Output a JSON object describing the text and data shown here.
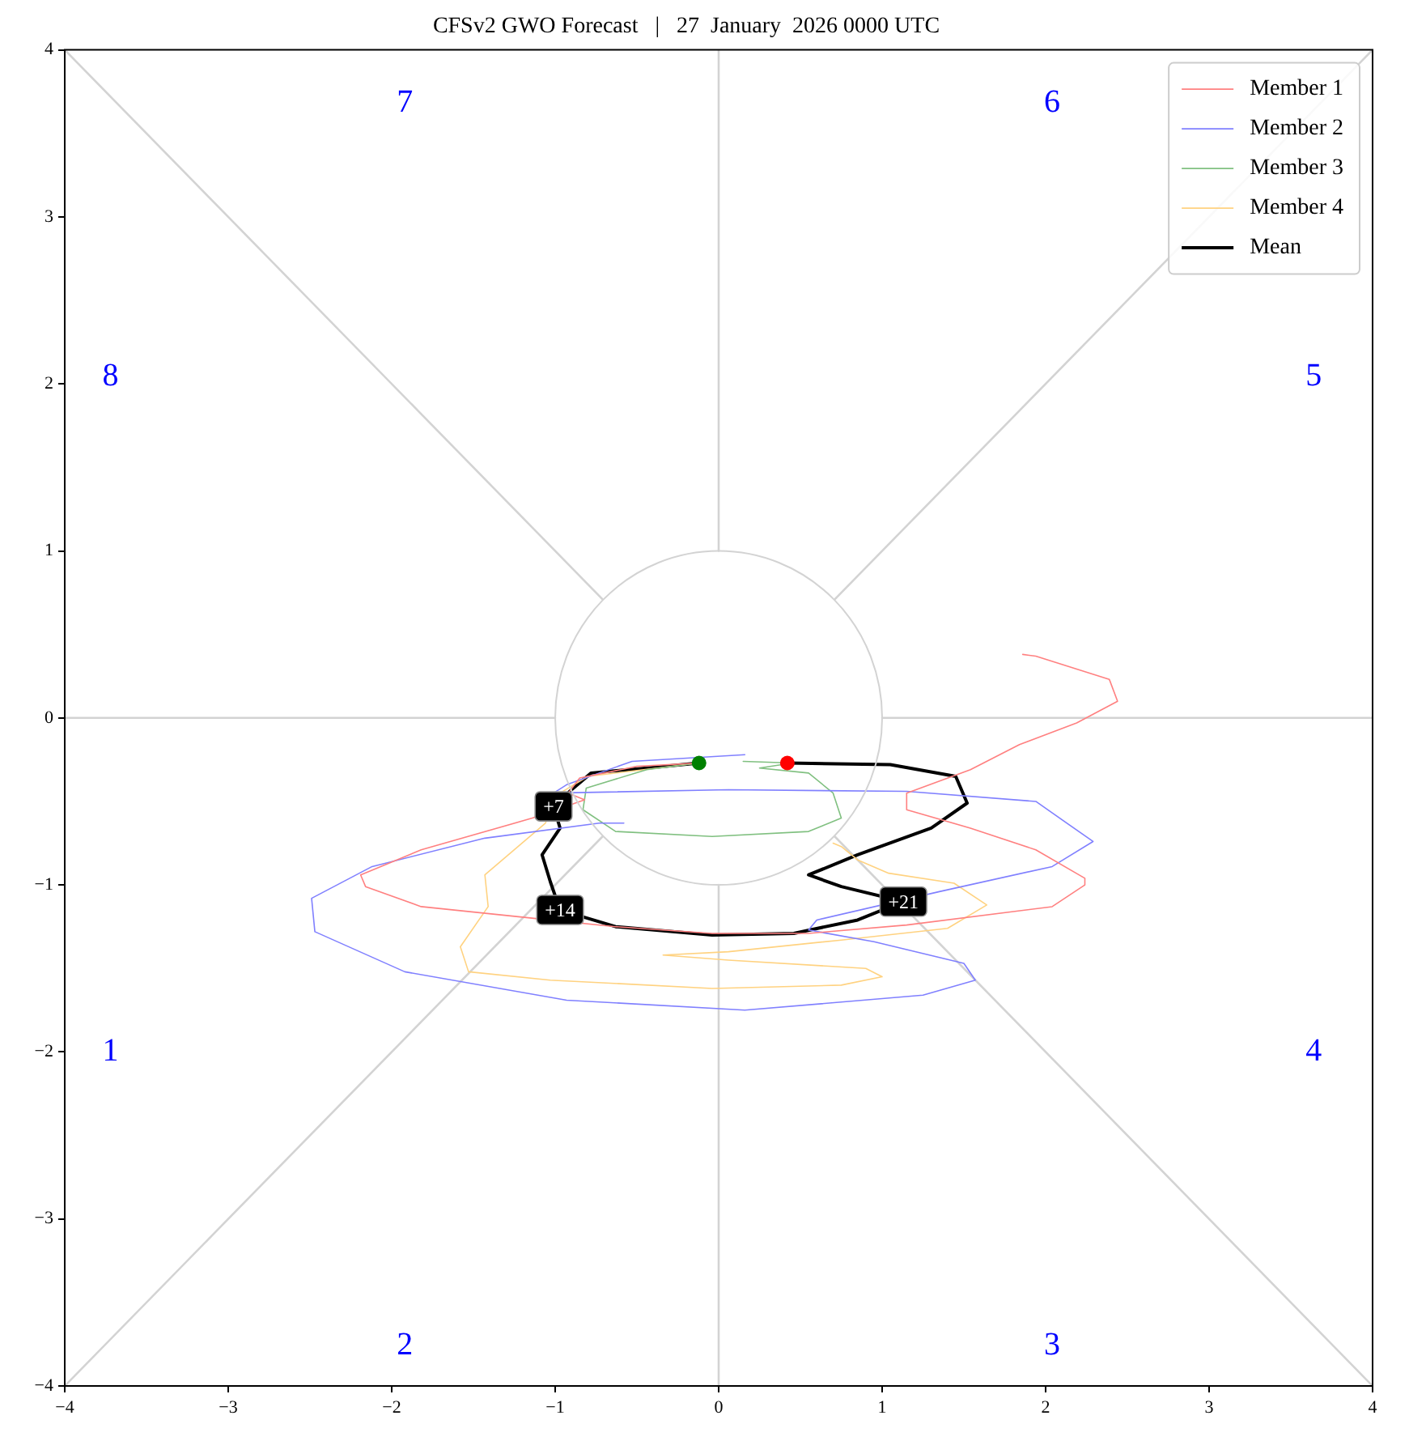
{
  "chart_data": {
    "type": "line",
    "title": "CFSv2 GWO Forecast   |   27  January  2026 0000 UTC",
    "xlim": [
      -4,
      4
    ],
    "ylim": [
      -4,
      4
    ],
    "xticks": [
      {
        "value": -4,
        "label": "−4"
      },
      {
        "value": -3,
        "label": "−3"
      },
      {
        "value": -2,
        "label": "−2"
      },
      {
        "value": -1,
        "label": "−1"
      },
      0,
      1,
      2,
      3,
      4
    ],
    "yticks": [
      {
        "value": -4,
        "label": "−4"
      },
      {
        "value": -3,
        "label": "−3"
      },
      {
        "value": -2,
        "label": "−2"
      },
      {
        "value": -1,
        "label": "−1"
      },
      0,
      1,
      2,
      3,
      4
    ],
    "legend": "top right",
    "line_style": "solid",
    "annotations": [
      "1",
      "2",
      "3",
      "4",
      "5",
      "6",
      "7",
      "8",
      {
        "text": "+7",
        "x": -1.01,
        "y": -0.53
      },
      {
        "text": "+14",
        "x": -0.97,
        "y": -1.15
      },
      {
        "text": "+21",
        "x": 1.13,
        "y": -1.1
      }
    ],
    "series": [
      {
        "color": "#d3d3d3",
        "x": [
          -4,
          -0.71
        ],
        "values": [
          4,
          0.71
        ]
      },
      {
        "color": "#d3d3d3",
        "x": [
          4,
          0.71
        ],
        "values": [
          4,
          0.71
        ]
      },
      {
        "color": "#d3d3d3",
        "x": [
          -4,
          -0.71
        ],
        "values": [
          -4,
          -0.71
        ]
      },
      {
        "color": "#d3d3d3",
        "x": [
          4,
          0.71
        ],
        "values": [
          -4,
          -0.71
        ]
      },
      {
        "color": "#d3d3d3",
        "x": [
          -4,
          -1
        ],
        "values": [
          0,
          0
        ]
      },
      {
        "color": "#d3d3d3",
        "x": [
          1,
          4
        ],
        "values": [
          0,
          0
        ]
      },
      {
        "color": "#d3d3d3",
        "x": [
          0,
          0
        ],
        "values": [
          1,
          4
        ]
      },
      {
        "color": "#d3d3d3",
        "x": [
          0,
          0
        ],
        "values": [
          -1,
          -4
        ]
      },
      {
        "name": "Member 1",
        "color": "#ff8080",
        "x": [
          -0.12,
          -0.5,
          -0.85,
          -0.92,
          -0.82,
          -1.14,
          -1.82,
          -2.19,
          -2.16,
          -1.82,
          -1.13,
          -0.63,
          -0.04,
          0.55,
          1.15,
          2.04,
          2.24,
          2.24,
          1.94,
          1.54,
          1.15,
          1.15,
          1.54,
          1.84,
          2.19,
          2.44,
          2.39,
          1.94,
          1.86
        ],
        "values": [
          -0.27,
          -0.29,
          -0.36,
          -0.45,
          -0.49,
          -0.6,
          -0.79,
          -0.94,
          -1.01,
          -1.13,
          -1.2,
          -1.25,
          -1.29,
          -1.29,
          -1.24,
          -1.13,
          -1.0,
          -0.96,
          -0.79,
          -0.66,
          -0.55,
          -0.45,
          -0.31,
          -0.16,
          -0.03,
          0.1,
          0.23,
          0.37,
          0.38
        ]
      },
      {
        "name": "Member 2",
        "color": "#8080ff",
        "x": [
          0.16,
          -0.53,
          -0.93,
          -1.01,
          0.06,
          1.15,
          1.94,
          2.29,
          2.04,
          1.35,
          0.6,
          0.55,
          0.95,
          1.5,
          1.57,
          1.25,
          0.16,
          -0.93,
          -1.92,
          -2.47,
          -2.49,
          -2.12,
          -1.43,
          -0.73,
          -0.58
        ],
        "values": [
          -0.22,
          -0.26,
          -0.4,
          -0.45,
          -0.43,
          -0.44,
          -0.5,
          -0.74,
          -0.89,
          -1.04,
          -1.21,
          -1.27,
          -1.34,
          -1.47,
          -1.57,
          -1.66,
          -1.75,
          -1.69,
          -1.52,
          -1.28,
          -1.08,
          -0.89,
          -0.72,
          -0.63,
          -0.63
        ]
      },
      {
        "name": "Member 3",
        "color": "#80c080",
        "x": [
          -0.12,
          -0.44,
          -0.81,
          -0.83,
          -0.63,
          -0.04,
          0.55,
          0.75,
          0.7,
          0.55,
          0.25,
          0.45,
          0.15
        ],
        "values": [
          -0.27,
          -0.31,
          -0.42,
          -0.55,
          -0.68,
          -0.71,
          -0.68,
          -0.6,
          -0.45,
          -0.33,
          -0.3,
          -0.27,
          -0.26
        ]
      },
      {
        "name": "Member 4",
        "color": "#ffd280",
        "x": [
          -0.12,
          -0.8,
          -0.97,
          -1.06,
          -1.43,
          -1.41,
          -1.58,
          -1.53,
          -1.03,
          -0.04,
          0.75,
          1.0,
          0.9,
          0.06,
          -0.34,
          0.06,
          0.75,
          1.4,
          1.64,
          1.44,
          1.04,
          0.85,
          0.75,
          0.7
        ],
        "values": [
          -0.27,
          -0.35,
          -0.45,
          -0.63,
          -0.94,
          -1.13,
          -1.37,
          -1.52,
          -1.57,
          -1.62,
          -1.6,
          -1.55,
          -1.5,
          -1.45,
          -1.42,
          -1.4,
          -1.33,
          -1.26,
          -1.12,
          -0.99,
          -0.93,
          -0.85,
          -0.77,
          -0.75
        ]
      },
      {
        "name": "Mean",
        "color": "#000000",
        "x": [
          -0.12,
          -0.44,
          -0.78,
          -0.9,
          -1.01,
          -0.97,
          -1.08,
          -1.03,
          -0.97,
          -0.63,
          -0.04,
          0.46,
          0.85,
          1.13,
          0.75,
          0.55,
          0.85,
          1.3,
          1.52,
          1.45,
          1.05,
          0.42
        ],
        "values": [
          -0.27,
          -0.3,
          -0.33,
          -0.43,
          -0.53,
          -0.66,
          -0.82,
          -0.98,
          -1.15,
          -1.25,
          -1.3,
          -1.29,
          -1.21,
          -1.1,
          -1.01,
          -0.94,
          -0.82,
          -0.66,
          -0.51,
          -0.35,
          -0.28,
          -0.27
        ]
      },
      {
        "type": "scatter",
        "marker": "circle",
        "color": "#008000",
        "x": [
          -0.12
        ],
        "values": [
          -0.27
        ]
      },
      {
        "type": "scatter",
        "marker": "circle",
        "color": "#ff0000",
        "x": [
          0.42
        ],
        "values": [
          -0.27
        ]
      }
    ]
  }
}
